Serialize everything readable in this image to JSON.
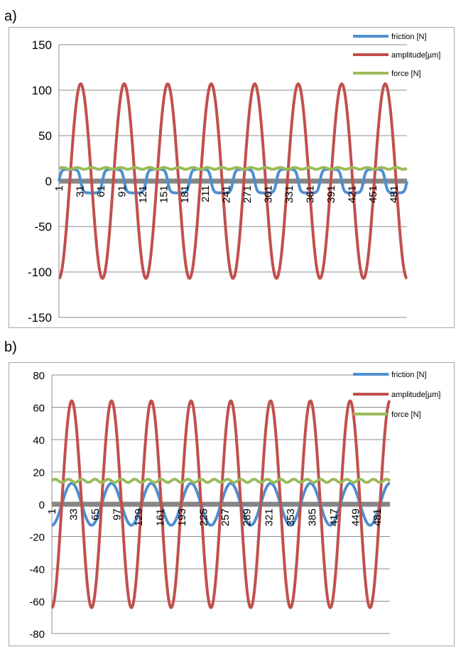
{
  "panels": [
    {
      "label": "a)"
    },
    {
      "label": "b)"
    }
  ],
  "chart_data": [
    {
      "type": "line",
      "title": "",
      "xlabel": "",
      "ylabel": "",
      "ylim": [
        -150,
        150
      ],
      "yticks": [
        150,
        100,
        50,
        0,
        -50,
        -100,
        -150
      ],
      "xticks": [
        1,
        31,
        61,
        91,
        121,
        151,
        181,
        211,
        241,
        271,
        301,
        331,
        361,
        391,
        421,
        451,
        481
      ],
      "x_range": [
        1,
        500
      ],
      "legend_position": "top-right",
      "grid": "horizontal",
      "series": [
        {
          "name": "friction [N]",
          "color": "#4f8fd0",
          "waveform": "square-ish",
          "amplitude": 13,
          "offset": 0,
          "cycles": 8
        },
        {
          "name": "amplitude[µm]",
          "color": "#c0504d",
          "waveform": "sine",
          "amplitude": 107,
          "offset": 0,
          "cycles": 8
        },
        {
          "name": "force [N]",
          "color": "#9bbb59",
          "waveform": "flat",
          "amplitude": 1,
          "offset": 14,
          "cycles": 8
        }
      ]
    },
    {
      "type": "line",
      "title": "",
      "xlabel": "",
      "ylabel": "",
      "ylim": [
        -80,
        80
      ],
      "yticks": [
        80,
        60,
        40,
        20,
        0,
        -20,
        -40,
        -60,
        -80
      ],
      "xticks": [
        1,
        33,
        65,
        97,
        129,
        161,
        193,
        225,
        257,
        289,
        321,
        353,
        385,
        417,
        449,
        481
      ],
      "x_range": [
        1,
        500
      ],
      "legend_position": "top-right",
      "grid": "horizontal",
      "series": [
        {
          "name": "friction [N]",
          "color": "#4f8fd0",
          "waveform": "sine",
          "amplitude": 13,
          "offset": 0,
          "cycles": 8.5
        },
        {
          "name": "amplitude[µm]",
          "color": "#c0504d",
          "waveform": "sine",
          "amplitude": 64,
          "offset": 0,
          "cycles": 8.5
        },
        {
          "name": "force [N]",
          "color": "#9bbb59",
          "waveform": "flat",
          "amplitude": 1,
          "offset": 14.5,
          "cycles": 8.5
        }
      ]
    }
  ]
}
